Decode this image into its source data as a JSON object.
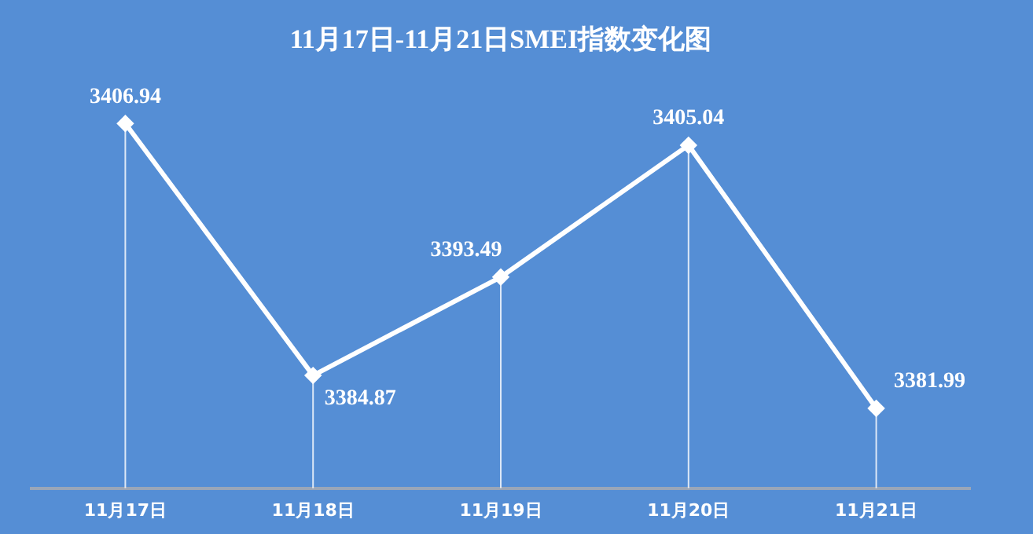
{
  "chart_data": {
    "type": "line",
    "title": "11月17日-11月21日SMEI指数变化图",
    "categories": [
      "11月17日",
      "11月18日",
      "11月19日",
      "11月20日",
      "11月21日"
    ],
    "series": [
      {
        "color": "#ffffff",
        "values": [
          3406.94,
          3384.87,
          3393.49,
          3405.04,
          3381.99
        ]
      }
    ],
    "tick_labels": "x",
    "data_labels": true,
    "marker": "diamond",
    "grid": "x",
    "legend": false
  }
}
